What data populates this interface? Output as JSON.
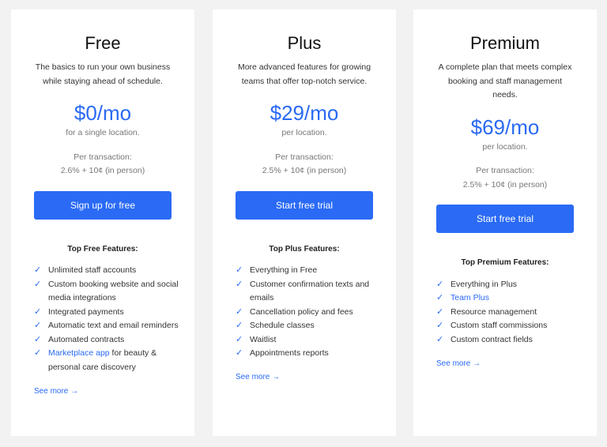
{
  "accent_color": "#2a6af2",
  "plans": [
    {
      "title": "Free",
      "description": "The basics to run your own business while staying ahead of schedule.",
      "price": "$0/mo",
      "price_note": "for a single location.",
      "transaction_label": "Per transaction:",
      "transaction_fee": "2.6% + 10¢ (in person)",
      "button": "Sign up for free",
      "features_heading": "Top Free Features:",
      "features": [
        {
          "link": "",
          "text": "Unlimited staff accounts"
        },
        {
          "link": "",
          "text": "Custom booking website and social media integrations"
        },
        {
          "link": "",
          "text": "Integrated payments"
        },
        {
          "link": "",
          "text": "Automatic text and email reminders"
        },
        {
          "link": "",
          "text": "Automated contracts"
        },
        {
          "link": "Marketplace app",
          "text": " for beauty & personal care discovery"
        }
      ],
      "see_more": "See more →"
    },
    {
      "title": "Plus",
      "description": "More advanced features for growing teams that offer top-notch service.",
      "price": "$29/mo",
      "price_note": "per location.",
      "transaction_label": "Per transaction:",
      "transaction_fee": "2.5% + 10¢ (in person)",
      "button": "Start free trial",
      "features_heading": "Top Plus Features:",
      "features": [
        {
          "link": "",
          "text": "Everything in Free"
        },
        {
          "link": "",
          "text": "Customer confirmation texts and emails"
        },
        {
          "link": "",
          "text": "Cancellation policy and fees"
        },
        {
          "link": "",
          "text": "Schedule classes"
        },
        {
          "link": "",
          "text": "Waitlist"
        },
        {
          "link": "",
          "text": "Appointments reports"
        }
      ],
      "see_more": "See more →"
    },
    {
      "title": "Premium",
      "description": "A complete plan that meets complex booking and staff management needs.",
      "price": "$69/mo",
      "price_note": "per location.",
      "transaction_label": "Per transaction:",
      "transaction_fee": "2.5% + 10¢ (in person)",
      "button": "Start free trial",
      "features_heading": "Top Premium Features:",
      "features": [
        {
          "link": "",
          "text": "Everything in Plus"
        },
        {
          "link": "Team Plus",
          "text": ""
        },
        {
          "link": "",
          "text": "Resource management"
        },
        {
          "link": "",
          "text": "Custom staff commissions"
        },
        {
          "link": "",
          "text": "Custom contract fields"
        }
      ],
      "see_more": "See more →"
    }
  ]
}
